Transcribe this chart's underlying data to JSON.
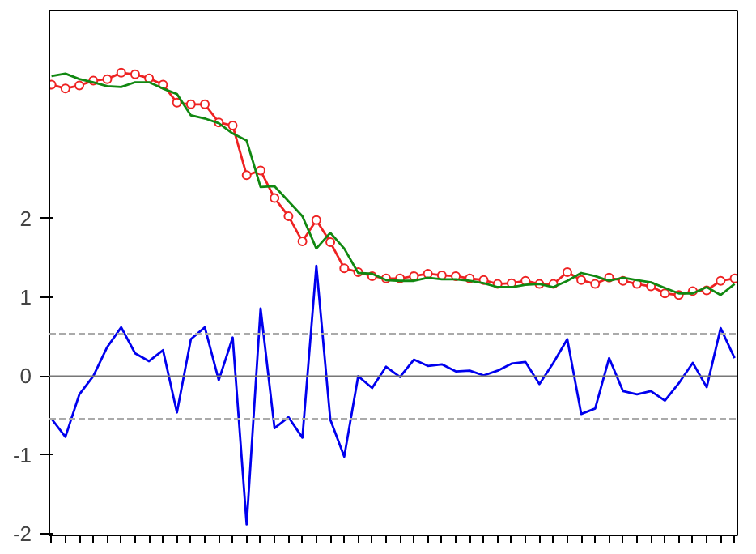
{
  "chart_data": {
    "type": "line",
    "categories": [
      null,
      null,
      null,
      null,
      null,
      null,
      null,
      null,
      null,
      null,
      null,
      null,
      null,
      null,
      null,
      null,
      null,
      null,
      null,
      null,
      null,
      null,
      null,
      null,
      null,
      null,
      null,
      null,
      null,
      null,
      null,
      null,
      null,
      null,
      null,
      null,
      null,
      null,
      null,
      null,
      null,
      null,
      null,
      null,
      null,
      null,
      null,
      null,
      null,
      null
    ],
    "series": [
      {
        "color": "#0000ee",
        "marker": "none",
        "values": [
          -0.54,
          -0.77,
          -0.23,
          0,
          0.37,
          0.62,
          0.29,
          0.19,
          0.33,
          -0.46,
          0.47,
          0.62,
          -0.05,
          0.49,
          -1.88,
          0.86,
          -0.66,
          -0.52,
          -0.78,
          1.4,
          -0.55,
          -1.02,
          0,
          -0.15,
          0.12,
          -0.01,
          0.21,
          0.13,
          0.15,
          0.06,
          0.07,
          0.01,
          0.07,
          0.16,
          0.18,
          -0.1,
          0.17,
          0.47,
          -0.48,
          -0.41,
          0.23,
          -0.19,
          -0.23,
          -0.19,
          -0.31,
          -0.09,
          0.17,
          -0.14,
          0.61,
          0.23
        ]
      },
      {
        "color": "#ee2222",
        "marker": "circle",
        "values": [
          3.7,
          3.65,
          3.69,
          3.75,
          3.77,
          3.85,
          3.83,
          3.78,
          3.7,
          3.47,
          3.45,
          3.45,
          3.22,
          3.18,
          2.55,
          2.61,
          2.26,
          2.03,
          1.71,
          1.98,
          1.7,
          1.37,
          1.32,
          1.27,
          1.24,
          1.24,
          1.27,
          1.3,
          1.28,
          1.27,
          1.24,
          1.22,
          1.17,
          1.18,
          1.21,
          1.17,
          1.17,
          1.32,
          1.22,
          1.17,
          1.25,
          1.21,
          1.17,
          1.14,
          1.05,
          1.03,
          1.08,
          1.09,
          1.21,
          1.24
        ]
      },
      {
        "color": "#118811",
        "marker": "none",
        "values": [
          3.81,
          3.84,
          3.77,
          3.73,
          3.68,
          3.67,
          3.73,
          3.73,
          3.65,
          3.58,
          3.31,
          3.27,
          3.21,
          3.08,
          2.99,
          2.4,
          2.41,
          2.22,
          2.03,
          1.62,
          1.82,
          1.62,
          1.31,
          1.3,
          1.22,
          1.21,
          1.21,
          1.25,
          1.23,
          1.23,
          1.21,
          1.18,
          1.13,
          1.13,
          1.16,
          1.17,
          1.13,
          1.21,
          1.31,
          1.27,
          1.21,
          1.25,
          1.22,
          1.19,
          1.12,
          1.05,
          1.05,
          1.13,
          1.03,
          1.17
        ]
      }
    ],
    "ylim": [
      -2.02,
      4.64
    ],
    "yticks": [
      -2,
      {
        "value": -1,
        "label": "-1"
      },
      0,
      1,
      2
    ],
    "ref_lines": [
      {
        "axis": "y",
        "value": 0,
        "color": "#777777",
        "line_style": "solid"
      },
      {
        "axis": "y",
        "value": 0.54,
        "color": "#aaaaaa",
        "line_style": "dashed"
      },
      {
        "axis": "y",
        "value": -0.54,
        "color": "#aaaaaa",
        "line_style": "dashed"
      }
    ],
    "grid": false
  }
}
